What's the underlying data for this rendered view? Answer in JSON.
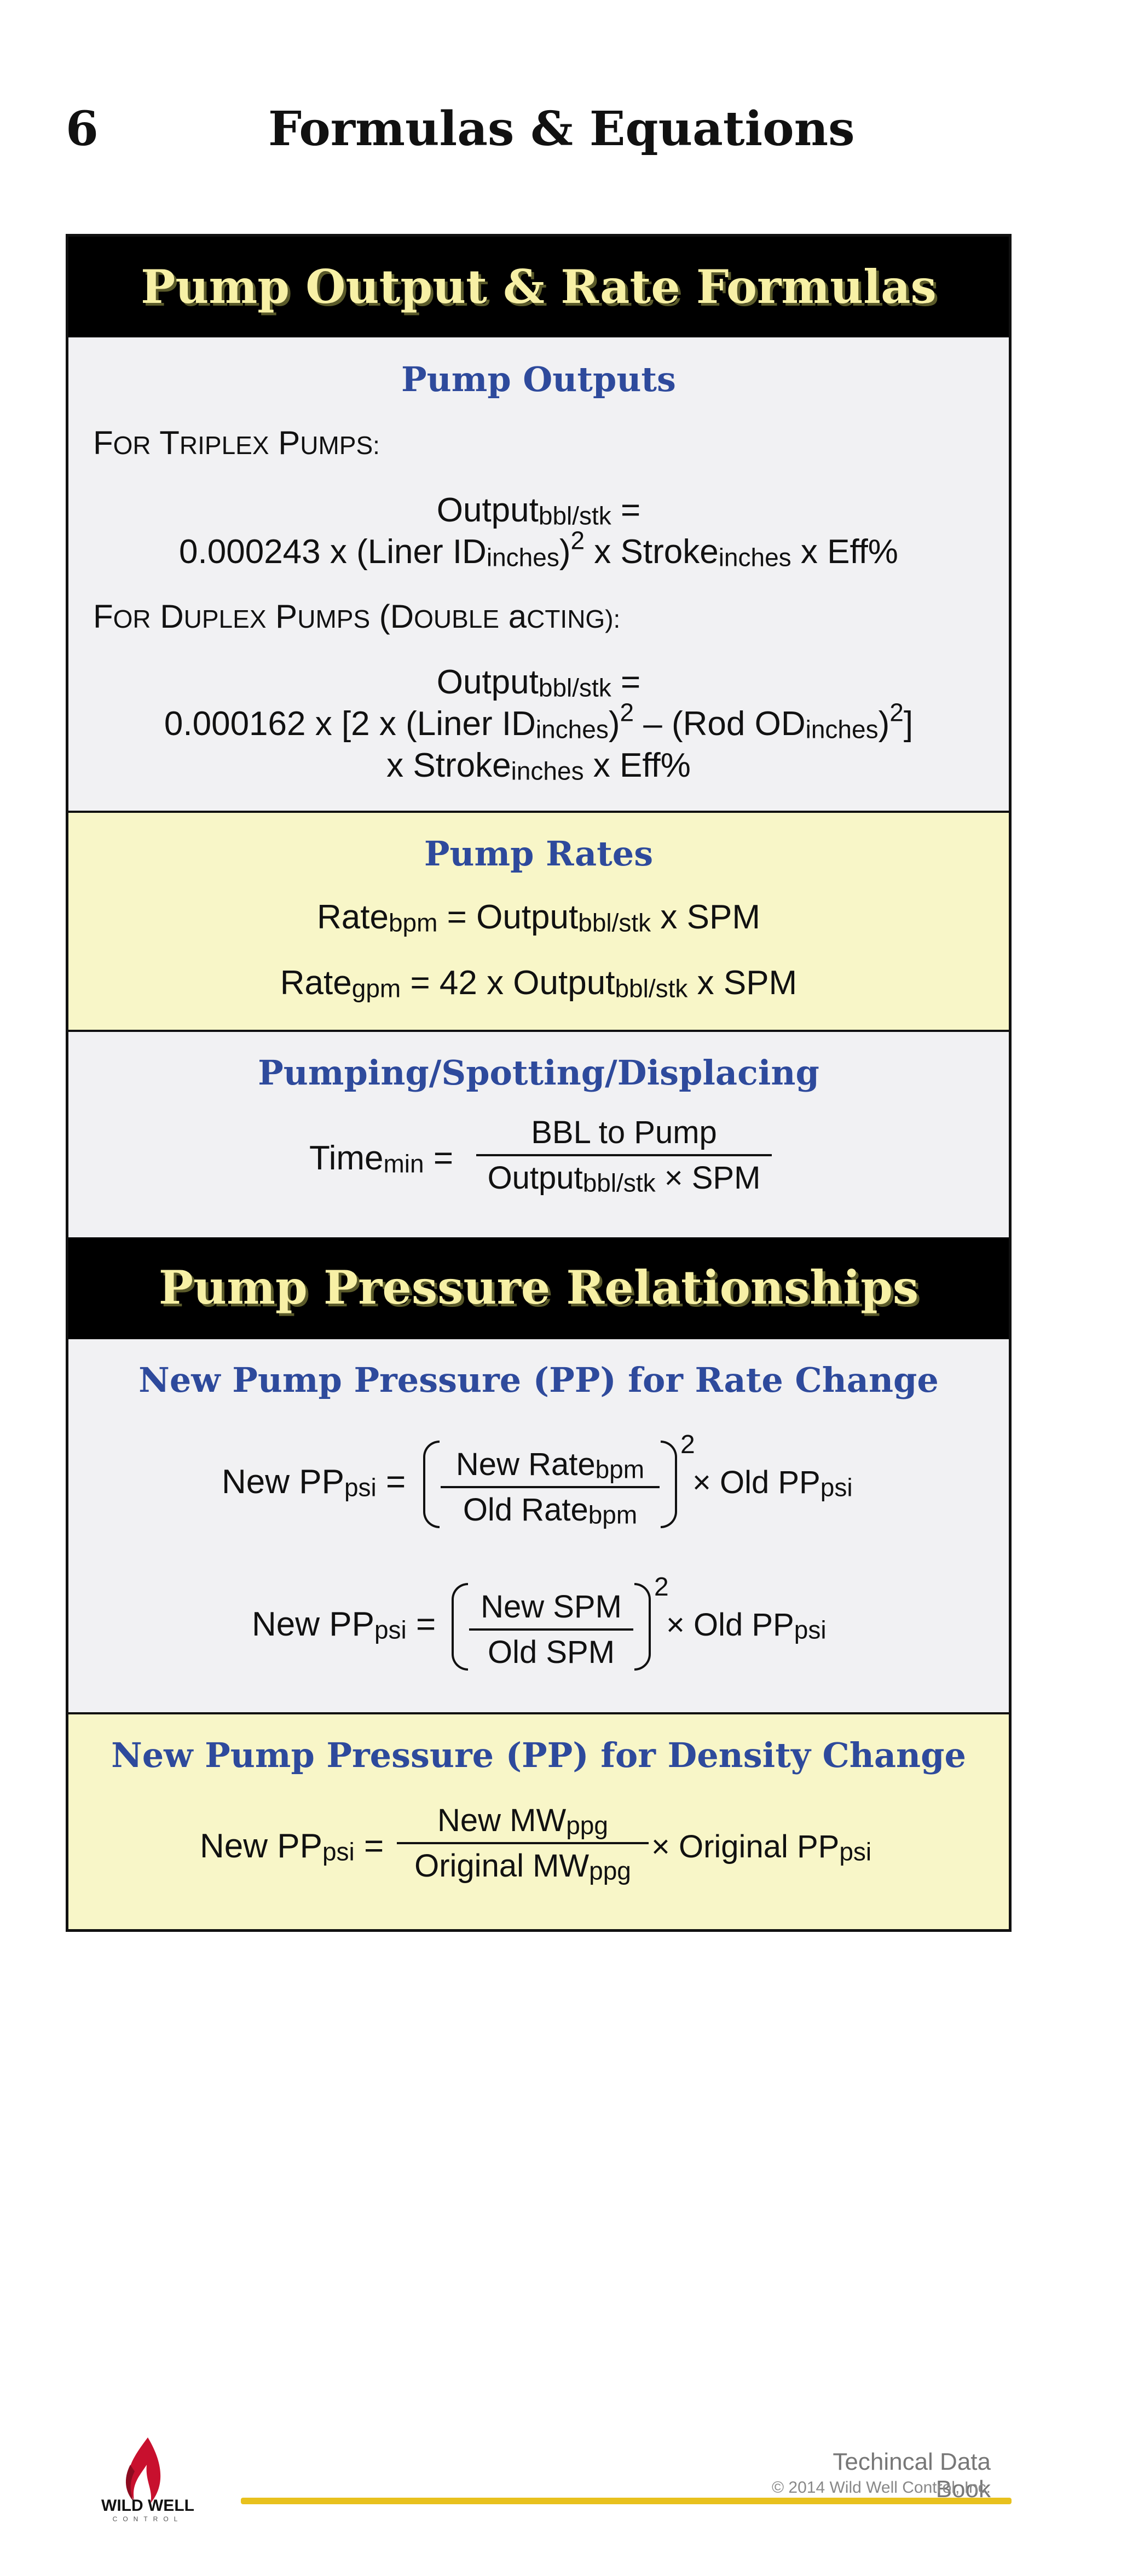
{
  "page": {
    "number": "6",
    "title": "Formulas & Equations"
  },
  "card": {
    "title_1": "Pump Output & Rate Formulas",
    "title_2": "Pump Pressure Relationships",
    "outputs": {
      "heading": "Pump Outputs",
      "triplex_label": "For Triplex Pumps:",
      "duplex_label": "For Duplex Pumps (Double acting):",
      "triplex_lhs": "Outputbbl/stk =",
      "triplex_rhs": "0.000243 x (Liner IDinches)2 x Strokeinches x Eff%",
      "duplex_lhs": "Outputbbl/stk =",
      "duplex_rhs_1": "0.000162 x [2 x (Liner IDinches)2 – (Rod ODinches)2]",
      "duplex_rhs_2": "x Strokeinches x Eff%"
    },
    "rates": {
      "heading": "Pump Rates",
      "bpm": "Ratebpm = Outputbbl/stk x SPM",
      "gpm": "Rategpm = 42 x Outputbbl/stk x SPM"
    },
    "displacing": {
      "heading": "Pumping/Spotting/Displacing",
      "lhs": "Timemin =",
      "num": "BBL to Pump",
      "den": "Outputbbl/stk × SPM"
    },
    "rate_change": {
      "heading": "New Pump Pressure (PP) for Rate Change",
      "f1_lhs": "New PPpsi =",
      "f1_num": "New Ratebpm",
      "f1_den": "Old Ratebpm",
      "f1_exp": "2",
      "f1_rhs": "× Old PPpsi",
      "f2_lhs": "New PPpsi =",
      "f2_num": "New SPM",
      "f2_den": "Old SPM",
      "f2_exp": "2",
      "f2_rhs": "× Old PPpsi"
    },
    "density_change": {
      "heading": "New Pump Pressure (PP) for Density Change",
      "lhs": "New PPpsi =",
      "num": "New MWppg",
      "den": "Original MWppg",
      "rhs": "× Original PPpsi"
    }
  },
  "footer": {
    "logo_text": "WILD WELL",
    "logo_subtext": "CONTROL",
    "book_title": "Techincal Data Book",
    "copyright": "© 2014 Wild Well Control, Inc."
  }
}
